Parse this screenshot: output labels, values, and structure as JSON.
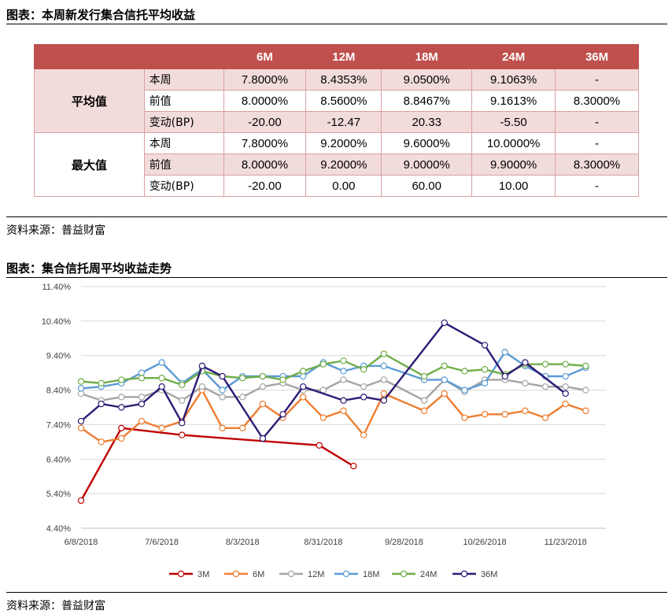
{
  "table_section": {
    "title": "图表：本周新发行集合信托平均收益",
    "columns": [
      "",
      "",
      "6M",
      "12M",
      "18M",
      "24M",
      "36M"
    ],
    "groups": [
      {
        "label": "平均值",
        "rows": [
          {
            "label": "本周",
            "values": [
              "7.8000%",
              "8.4353%",
              "9.0500%",
              "9.1063%",
              "-"
            ]
          },
          {
            "label": "前值",
            "values": [
              "8.0000%",
              "8.5600%",
              "8.8467%",
              "9.1613%",
              "8.3000%"
            ]
          },
          {
            "label": "变动(BP)",
            "values": [
              "-20.00",
              "-12.47",
              "20.33",
              "-5.50",
              "-"
            ]
          }
        ]
      },
      {
        "label": "最大值",
        "rows": [
          {
            "label": "本周",
            "values": [
              "7.8000%",
              "9.2000%",
              "9.6000%",
              "10.0000%",
              "-"
            ]
          },
          {
            "label": "前值",
            "values": [
              "8.0000%",
              "9.2000%",
              "9.0000%",
              "9.9000%",
              "8.3000%"
            ]
          },
          {
            "label": "变动(BP)",
            "values": [
              "-20.00",
              "0.00",
              "60.00",
              "10.00",
              "-"
            ]
          }
        ]
      }
    ],
    "source": "资料来源：普益财富"
  },
  "chart_section": {
    "title": "图表：集合信托周平均收益走势",
    "source": "资料来源：普益财富"
  },
  "chart_data": {
    "type": "line",
    "title": "",
    "xlabel": "",
    "ylabel": "",
    "x_tick_labels": [
      "6/8/2018",
      "7/6/2018",
      "8/3/2018",
      "8/31/2018",
      "9/28/2018",
      "10/26/2018",
      "11/23/2018"
    ],
    "y_tick_labels": [
      "4.40%",
      "5.40%",
      "6.40%",
      "7.40%",
      "8.40%",
      "9.40%",
      "10.40%",
      "11.40%"
    ],
    "ylim": [
      4.4,
      11.4
    ],
    "x_unit": "week index from 6/8/2018",
    "xlim": [
      0,
      26
    ],
    "grid": "horizontal",
    "legend_position": "bottom",
    "series": [
      {
        "name": "3M",
        "color": "#c00000",
        "points": [
          [
            0,
            5.2
          ],
          [
            2,
            7.3
          ],
          [
            5,
            7.1
          ],
          [
            11.8,
            6.8
          ],
          [
            13.5,
            6.2
          ]
        ]
      },
      {
        "name": "6M",
        "color": "#ed7d31",
        "points": [
          [
            0,
            7.3
          ],
          [
            1,
            6.9
          ],
          [
            2,
            7.0
          ],
          [
            3,
            7.5
          ],
          [
            4,
            7.3
          ],
          [
            5,
            7.5
          ],
          [
            6,
            8.4
          ],
          [
            7,
            7.3
          ],
          [
            8,
            7.3
          ],
          [
            9,
            8.0
          ],
          [
            10,
            7.6
          ],
          [
            11,
            8.2
          ],
          [
            12,
            7.6
          ],
          [
            13,
            7.8
          ],
          [
            14,
            7.1
          ],
          [
            15,
            8.3
          ],
          [
            17,
            7.8
          ],
          [
            18,
            8.3
          ],
          [
            19,
            7.6
          ],
          [
            20,
            7.7
          ],
          [
            21,
            7.7
          ],
          [
            22,
            7.8
          ],
          [
            23,
            7.6
          ],
          [
            24,
            8.0
          ],
          [
            25,
            7.8
          ]
        ]
      },
      {
        "name": "12M",
        "color": "#a5a5a5",
        "points": [
          [
            0,
            8.3
          ],
          [
            1,
            8.1
          ],
          [
            2,
            8.2
          ],
          [
            3,
            8.2
          ],
          [
            4,
            8.4
          ],
          [
            5,
            8.1
          ],
          [
            6,
            8.5
          ],
          [
            7,
            8.2
          ],
          [
            8,
            8.2
          ],
          [
            9,
            8.5
          ],
          [
            10,
            8.6
          ],
          [
            11,
            8.4
          ],
          [
            12,
            8.4
          ],
          [
            13,
            8.7
          ],
          [
            14,
            8.5
          ],
          [
            15,
            8.7
          ],
          [
            17,
            8.1
          ],
          [
            18,
            8.7
          ],
          [
            19,
            8.35
          ],
          [
            20,
            8.7
          ],
          [
            21,
            8.7
          ],
          [
            22,
            8.6
          ],
          [
            23,
            8.5
          ],
          [
            24,
            8.5
          ],
          [
            25,
            8.4
          ]
        ]
      },
      {
        "name": "18M",
        "color": "#5b9bd5",
        "points": [
          [
            0,
            8.45
          ],
          [
            1,
            8.5
          ],
          [
            2,
            8.6
          ],
          [
            3,
            8.9
          ],
          [
            4,
            9.2
          ],
          [
            5,
            8.6
          ],
          [
            6,
            9.0
          ],
          [
            7,
            8.4
          ],
          [
            8,
            8.8
          ],
          [
            9,
            8.8
          ],
          [
            10,
            8.8
          ],
          [
            11,
            8.8
          ],
          [
            12,
            9.2
          ],
          [
            13,
            8.95
          ],
          [
            14,
            9.1
          ],
          [
            15,
            9.1
          ],
          [
            17,
            8.7
          ],
          [
            18,
            8.7
          ],
          [
            19,
            8.4
          ],
          [
            20,
            8.6
          ],
          [
            21,
            9.5
          ],
          [
            22,
            9.1
          ],
          [
            23,
            8.8
          ],
          [
            24,
            8.8
          ],
          [
            25,
            9.05
          ]
        ]
      },
      {
        "name": "24M",
        "color": "#70ad47",
        "points": [
          [
            0,
            8.65
          ],
          [
            1,
            8.6
          ],
          [
            2,
            8.7
          ],
          [
            3,
            8.75
          ],
          [
            4,
            8.75
          ],
          [
            5,
            8.55
          ],
          [
            6,
            8.95
          ],
          [
            7,
            8.8
          ],
          [
            8,
            8.75
          ],
          [
            9,
            8.8
          ],
          [
            10,
            8.7
          ],
          [
            11,
            8.95
          ],
          [
            12,
            9.15
          ],
          [
            13,
            9.25
          ],
          [
            14,
            9.0
          ],
          [
            15,
            9.45
          ],
          [
            17,
            8.8
          ],
          [
            18,
            9.1
          ],
          [
            19,
            8.95
          ],
          [
            20,
            9.0
          ],
          [
            21,
            8.85
          ],
          [
            22,
            9.15
          ],
          [
            23,
            9.15
          ],
          [
            24,
            9.15
          ],
          [
            25,
            9.1
          ]
        ]
      },
      {
        "name": "36M",
        "color": "#2e1a75",
        "points": [
          [
            0,
            7.5
          ],
          [
            1,
            8.0
          ],
          [
            2,
            7.9
          ],
          [
            3,
            8.0
          ],
          [
            4,
            8.5
          ],
          [
            5,
            7.45
          ],
          [
            6,
            9.1
          ],
          [
            7,
            8.8
          ],
          [
            9,
            7.0
          ],
          [
            10,
            7.7
          ],
          [
            11,
            8.5
          ],
          [
            13,
            8.1
          ],
          [
            14,
            8.2
          ],
          [
            15,
            8.1
          ],
          [
            18,
            10.35
          ],
          [
            20,
            9.7
          ],
          [
            21,
            8.8
          ],
          [
            22,
            9.2
          ],
          [
            24,
            8.3
          ]
        ]
      }
    ]
  }
}
